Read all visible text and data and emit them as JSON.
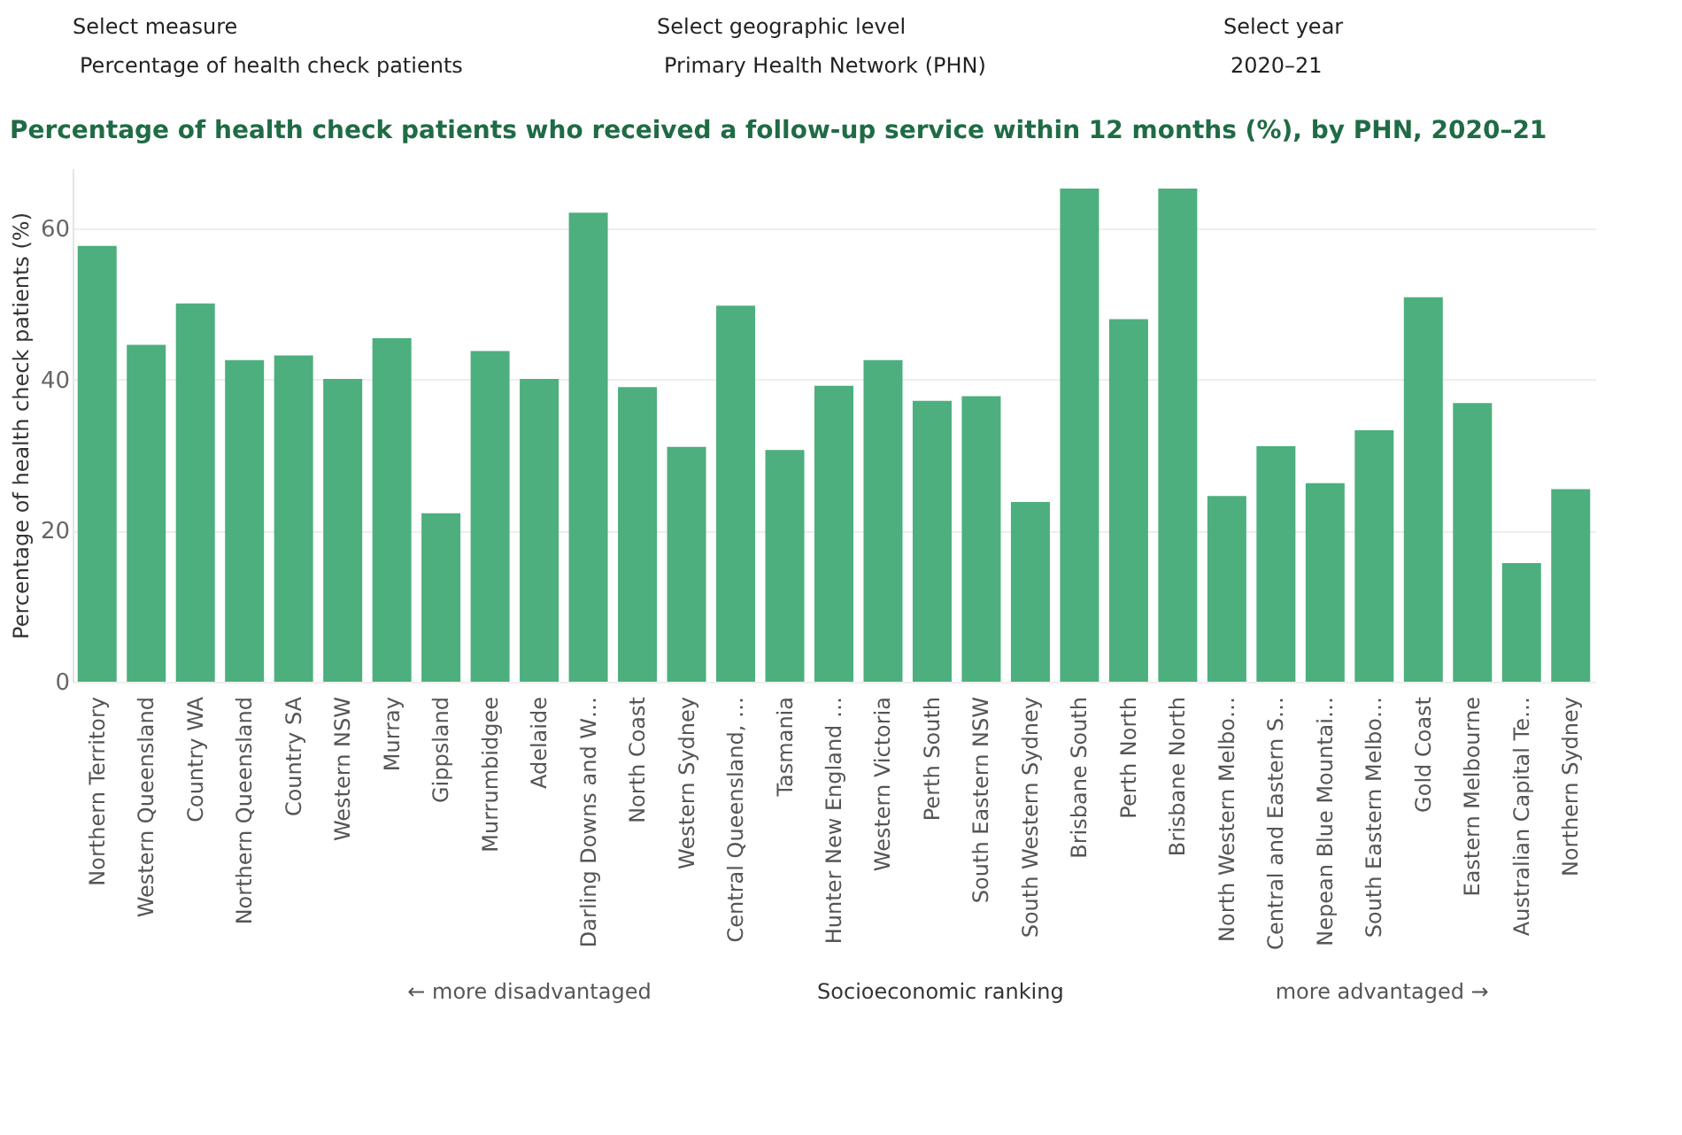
{
  "chart_data": {
    "type": "bar",
    "title": "Percentage of health check patients who received a follow-up service within 12 months (%), by PHN, 2020–21",
    "ylabel": "Percentage of health check patients (%)",
    "xlabel": "Socioeconomic ranking",
    "annotations": [
      "Select measure",
      "Percentage of health check patients",
      "Select geographic level",
      "Primary Health Network (PHN)",
      "Select year",
      "2020–21",
      "← more disadvantaged",
      "more advantaged →"
    ],
    "categories": [
      "Northern Territory",
      "Western Queensland",
      "Country WA",
      "Northern Queensland",
      "Country SA",
      "Western NSW",
      "Murray",
      "Gippsland",
      "Murrumbidgee",
      "Adelaide",
      "Darling Downs and W…",
      "North Coast",
      "Western Sydney",
      "Central Queensland, …",
      "Tasmania",
      "Hunter New England …",
      "Western Victoria",
      "Perth South",
      "South Eastern NSW",
      "South Western Sydney",
      "Brisbane South",
      "Perth North",
      "Brisbane North",
      "North Western Melbo…",
      "Central and Eastern S…",
      "Nepean Blue Mountai…",
      "South Eastern Melbo…",
      "Gold Coast",
      "Eastern Melbourne",
      "Australian Capital Te…",
      "Northern Sydney"
    ],
    "values": [
      57.7,
      44.6,
      50.1,
      42.6,
      43.2,
      40.1,
      45.5,
      22.3,
      43.8,
      40.1,
      62.1,
      39.0,
      31.1,
      49.8,
      30.7,
      39.2,
      42.6,
      37.2,
      37.8,
      23.8,
      65.3,
      48.0,
      65.3,
      24.6,
      31.2,
      26.3,
      33.3,
      50.9,
      36.9,
      15.7,
      25.5
    ],
    "color": "#4caf7d",
    "ylim": [
      0,
      68
    ],
    "yticks": [
      0,
      20,
      40,
      60
    ],
    "grid": "y"
  }
}
